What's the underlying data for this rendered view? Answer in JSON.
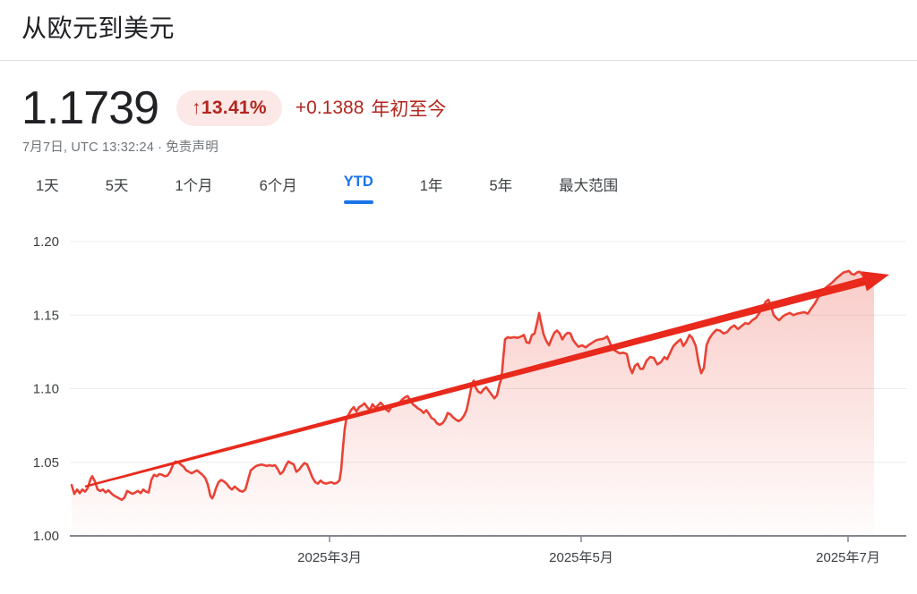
{
  "header": {
    "title": "从欧元到美元",
    "price": "1.1739",
    "change_badge": "↑13.41%",
    "change_abs": "+0.1388",
    "change_period": "年初至今",
    "timestamp": "7月7日, UTC 13:32:24",
    "separator": "·",
    "disclaimer": "免责声明"
  },
  "range_tabs": [
    {
      "label": "1天",
      "selected": false
    },
    {
      "label": "5天",
      "selected": false
    },
    {
      "label": "1个月",
      "selected": false
    },
    {
      "label": "6个月",
      "selected": false
    },
    {
      "label": "YTD",
      "selected": true
    },
    {
      "label": "1年",
      "selected": false
    },
    {
      "label": "5年",
      "selected": false
    },
    {
      "label": "最大范围",
      "selected": false
    }
  ],
  "colors": {
    "up_red_text": "#b3261e",
    "badge_bg": "#fce8e6",
    "line": "#e94235",
    "area_top": "rgba(234,67,53,0.30)",
    "area_bottom": "rgba(234,67,53,0.01)",
    "trend_arrow": "#e8291c",
    "tab_selected_blue": "#1a73e8",
    "axis_text": "#3c4043",
    "muted_text": "#70757a",
    "gridline": "#e9ebee",
    "baseline": "#82878c"
  },
  "chart_data": {
    "type": "area",
    "series_name": "EUR/USD year-to-date",
    "ylim": [
      1.0,
      1.2
    ],
    "y_ticks": [
      {
        "label": "1.20",
        "value": 1.2
      },
      {
        "label": "1.15",
        "value": 1.15
      },
      {
        "label": "1.10",
        "value": 1.1
      },
      {
        "label": "1.05",
        "value": 1.05
      },
      {
        "label": "1.00",
        "value": 1.0
      }
    ],
    "x_ticks": [
      {
        "label": "2025年3月",
        "x": 368
      },
      {
        "label": "2025年5月",
        "x": 649
      },
      {
        "label": "2025年7月",
        "x": 947
      }
    ],
    "grid": true,
    "points": [
      [
        80,
        1.0345
      ],
      [
        83,
        1.0285
      ],
      [
        86,
        1.0315
      ],
      [
        89,
        1.029
      ],
      [
        92,
        1.0315
      ],
      [
        95,
        1.03
      ],
      [
        98,
        1.0325
      ],
      [
        101,
        1.0385
      ],
      [
        103,
        1.0405
      ],
      [
        106,
        1.037
      ],
      [
        109,
        1.0315
      ],
      [
        112,
        1.0305
      ],
      [
        115,
        1.0315
      ],
      [
        118,
        1.0295
      ],
      [
        121,
        1.031
      ],
      [
        124,
        1.029
      ],
      [
        127,
        1.0275
      ],
      [
        130,
        1.0265
      ],
      [
        133,
        1.0255
      ],
      [
        136,
        1.0245
      ],
      [
        139,
        1.026
      ],
      [
        142,
        1.0305
      ],
      [
        145,
        1.0295
      ],
      [
        148,
        1.0285
      ],
      [
        151,
        1.0295
      ],
      [
        154,
        1.0305
      ],
      [
        157,
        1.029
      ],
      [
        160,
        1.0315
      ],
      [
        163,
        1.03
      ],
      [
        166,
        1.0295
      ],
      [
        169,
        1.038
      ],
      [
        172,
        1.0415
      ],
      [
        175,
        1.0405
      ],
      [
        178,
        1.042
      ],
      [
        181,
        1.0415
      ],
      [
        184,
        1.0405
      ],
      [
        187,
        1.041
      ],
      [
        190,
        1.0435
      ],
      [
        193,
        1.048
      ],
      [
        196,
        1.0505
      ],
      [
        199,
        1.05
      ],
      [
        202,
        1.0485
      ],
      [
        205,
        1.047
      ],
      [
        208,
        1.0445
      ],
      [
        211,
        1.0435
      ],
      [
        214,
        1.0425
      ],
      [
        217,
        1.0435
      ],
      [
        220,
        1.0445
      ],
      [
        223,
        1.043
      ],
      [
        226,
        1.0415
      ],
      [
        229,
        1.0395
      ],
      [
        232,
        1.035
      ],
      [
        235,
        1.027
      ],
      [
        237,
        1.0255
      ],
      [
        239,
        1.028
      ],
      [
        241,
        1.032
      ],
      [
        244,
        1.0365
      ],
      [
        247,
        1.038
      ],
      [
        250,
        1.037
      ],
      [
        253,
        1.0355
      ],
      [
        256,
        1.033
      ],
      [
        259,
        1.0315
      ],
      [
        262,
        1.0335
      ],
      [
        265,
        1.032
      ],
      [
        268,
        1.0305
      ],
      [
        271,
        1.03
      ],
      [
        274,
        1.0315
      ],
      [
        277,
        1.038
      ],
      [
        280,
        1.0445
      ],
      [
        283,
        1.046
      ],
      [
        286,
        1.0475
      ],
      [
        289,
        1.048
      ],
      [
        292,
        1.0485
      ],
      [
        295,
        1.048
      ],
      [
        298,
        1.0475
      ],
      [
        301,
        1.048
      ],
      [
        304,
        1.0475
      ],
      [
        307,
        1.048
      ],
      [
        310,
        1.0455
      ],
      [
        313,
        1.042
      ],
      [
        316,
        1.0435
      ],
      [
        319,
        1.0475
      ],
      [
        322,
        1.0505
      ],
      [
        325,
        1.0495
      ],
      [
        328,
        1.0485
      ],
      [
        331,
        1.0435
      ],
      [
        334,
        1.045
      ],
      [
        337,
        1.0475
      ],
      [
        340,
        1.0495
      ],
      [
        343,
        1.0485
      ],
      [
        346,
        1.044
      ],
      [
        349,
        1.0395
      ],
      [
        352,
        1.0365
      ],
      [
        355,
        1.0355
      ],
      [
        358,
        1.0375
      ],
      [
        361,
        1.036
      ],
      [
        364,
        1.0355
      ],
      [
        367,
        1.036
      ],
      [
        370,
        1.0365
      ],
      [
        373,
        1.0355
      ],
      [
        376,
        1.036
      ],
      [
        379,
        1.0375
      ],
      [
        381,
        1.045
      ],
      [
        383,
        1.06
      ],
      [
        385,
        1.073
      ],
      [
        387,
        1.0805
      ],
      [
        389,
        1.082
      ],
      [
        392,
        1.0855
      ],
      [
        395,
        1.0875
      ],
      [
        398,
        1.0845
      ],
      [
        401,
        1.0875
      ],
      [
        404,
        1.0885
      ],
      [
        407,
        1.09
      ],
      [
        410,
        1.0875
      ],
      [
        413,
        1.0855
      ],
      [
        416,
        1.0895
      ],
      [
        419,
        1.087
      ],
      [
        422,
        1.0885
      ],
      [
        425,
        1.0905
      ],
      [
        428,
        1.0885
      ],
      [
        431,
        1.086
      ],
      [
        434,
        1.0845
      ],
      [
        437,
        1.0875
      ],
      [
        440,
        1.088
      ],
      [
        443,
        1.0885
      ],
      [
        446,
        1.0905
      ],
      [
        449,
        1.0925
      ],
      [
        452,
        1.094
      ],
      [
        455,
        1.095
      ],
      [
        458,
        1.0925
      ],
      [
        461,
        1.0895
      ],
      [
        464,
        1.088
      ],
      [
        467,
        1.0865
      ],
      [
        470,
        1.0855
      ],
      [
        473,
        1.0835
      ],
      [
        476,
        1.0855
      ],
      [
        479,
        1.083
      ],
      [
        482,
        1.08
      ],
      [
        485,
        1.079
      ],
      [
        488,
        1.0765
      ],
      [
        491,
        1.0755
      ],
      [
        494,
        1.0765
      ],
      [
        497,
        1.079
      ],
      [
        500,
        1.0835
      ],
      [
        503,
        1.0825
      ],
      [
        506,
        1.0805
      ],
      [
        509,
        1.079
      ],
      [
        512,
        1.078
      ],
      [
        515,
        1.079
      ],
      [
        518,
        1.0815
      ],
      [
        521,
        1.0855
      ],
      [
        524,
        1.094
      ],
      [
        527,
        1.103
      ],
      [
        529,
        1.1055
      ],
      [
        531,
        1.101
      ],
      [
        534,
        1.098
      ],
      [
        537,
        1.097
      ],
      [
        540,
        1.0995
      ],
      [
        543,
        1.101
      ],
      [
        546,
        1.0985
      ],
      [
        549,
        1.096
      ],
      [
        552,
        1.0935
      ],
      [
        555,
        1.0955
      ],
      [
        558,
        1.1035
      ],
      [
        560,
        1.107
      ],
      [
        562,
        1.121
      ],
      [
        564,
        1.1335
      ],
      [
        567,
        1.135
      ],
      [
        570,
        1.1345
      ],
      [
        574,
        1.135
      ],
      [
        578,
        1.1345
      ],
      [
        582,
        1.1355
      ],
      [
        585,
        1.1365
      ],
      [
        588,
        1.1315
      ],
      [
        591,
        1.131
      ],
      [
        594,
        1.1365
      ],
      [
        597,
        1.1375
      ],
      [
        600,
        1.1455
      ],
      [
        602,
        1.1515
      ],
      [
        604,
        1.1455
      ],
      [
        607,
        1.137
      ],
      [
        610,
        1.1325
      ],
      [
        613,
        1.1295
      ],
      [
        616,
        1.134
      ],
      [
        619,
        1.138
      ],
      [
        622,
        1.1395
      ],
      [
        625,
        1.1375
      ],
      [
        628,
        1.1335
      ],
      [
        631,
        1.1365
      ],
      [
        634,
        1.138
      ],
      [
        637,
        1.1375
      ],
      [
        640,
        1.133
      ],
      [
        643,
        1.1305
      ],
      [
        646,
        1.1285
      ],
      [
        650,
        1.1295
      ],
      [
        654,
        1.128
      ],
      [
        658,
        1.13
      ],
      [
        662,
        1.1315
      ],
      [
        666,
        1.133
      ],
      [
        670,
        1.1335
      ],
      [
        674,
        1.134
      ],
      [
        678,
        1.1355
      ],
      [
        681,
        1.1315
      ],
      [
        684,
        1.127
      ],
      [
        688,
        1.1255
      ],
      [
        692,
        1.124
      ],
      [
        696,
        1.1245
      ],
      [
        700,
        1.1235
      ],
      [
        703,
        1.115
      ],
      [
        706,
        1.1105
      ],
      [
        709,
        1.1155
      ],
      [
        712,
        1.117
      ],
      [
        715,
        1.1135
      ],
      [
        718,
        1.1135
      ],
      [
        722,
        1.119
      ],
      [
        726,
        1.1215
      ],
      [
        730,
        1.121
      ],
      [
        734,
        1.1165
      ],
      [
        738,
        1.118
      ],
      [
        742,
        1.1215
      ],
      [
        745,
        1.12
      ],
      [
        748,
        1.124
      ],
      [
        752,
        1.129
      ],
      [
        756,
        1.1315
      ],
      [
        760,
        1.1335
      ],
      [
        763,
        1.129
      ],
      [
        766,
        1.1315
      ],
      [
        770,
        1.1365
      ],
      [
        773,
        1.1345
      ],
      [
        777,
        1.129
      ],
      [
        780,
        1.118
      ],
      [
        783,
        1.1105
      ],
      [
        786,
        1.114
      ],
      [
        789,
        1.1295
      ],
      [
        792,
        1.134
      ],
      [
        796,
        1.1375
      ],
      [
        800,
        1.14
      ],
      [
        804,
        1.1395
      ],
      [
        808,
        1.1375
      ],
      [
        812,
        1.1385
      ],
      [
        816,
        1.1415
      ],
      [
        820,
        1.143
      ],
      [
        824,
        1.1405
      ],
      [
        828,
        1.1425
      ],
      [
        832,
        1.1445
      ],
      [
        836,
        1.144
      ],
      [
        840,
        1.1465
      ],
      [
        844,
        1.148
      ],
      [
        848,
        1.1515
      ],
      [
        852,
        1.1555
      ],
      [
        855,
        1.159
      ],
      [
        858,
        1.1605
      ],
      [
        861,
        1.156
      ],
      [
        864,
        1.15
      ],
      [
        867,
        1.148
      ],
      [
        870,
        1.1465
      ],
      [
        874,
        1.149
      ],
      [
        878,
        1.1505
      ],
      [
        882,
        1.1515
      ],
      [
        886,
        1.15
      ],
      [
        890,
        1.151
      ],
      [
        894,
        1.1515
      ],
      [
        898,
        1.152
      ],
      [
        902,
        1.151
      ],
      [
        906,
        1.1545
      ],
      [
        910,
        1.158
      ],
      [
        914,
        1.1625
      ],
      [
        918,
        1.166
      ],
      [
        922,
        1.1685
      ],
      [
        926,
        1.1705
      ],
      [
        930,
        1.1725
      ],
      [
        934,
        1.175
      ],
      [
        938,
        1.177
      ],
      [
        942,
        1.179
      ],
      [
        945,
        1.1795
      ],
      [
        948,
        1.18
      ],
      [
        951,
        1.178
      ],
      [
        954,
        1.1775
      ],
      [
        957,
        1.179
      ],
      [
        960,
        1.1795
      ],
      [
        963,
        1.1775
      ],
      [
        966,
        1.1745
      ],
      [
        969,
        1.1725
      ],
      [
        972,
        1.17
      ],
      [
        976,
        1.172
      ]
    ],
    "trend_arrow": {
      "x1": 95,
      "v1": 1.0335,
      "x2": 993,
      "v2": 1.1775
    }
  }
}
